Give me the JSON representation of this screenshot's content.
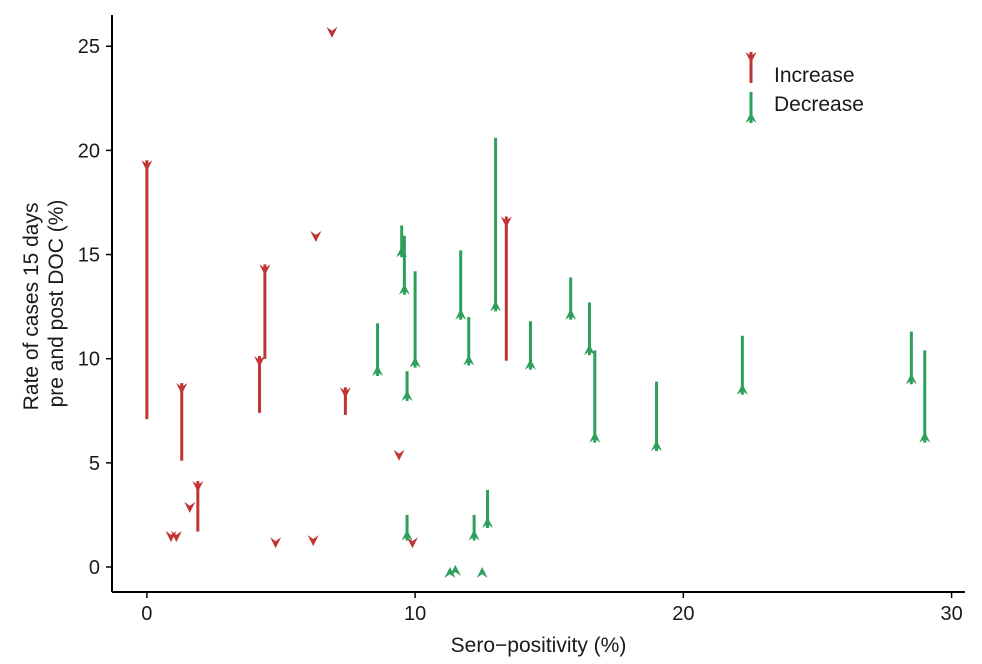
{
  "chart_data": {
    "type": "arrow",
    "xlabel": "Sero−positivity (%)",
    "ylabel_lines": [
      "Rate of cases 15 days",
      "pre and post DOC (%)"
    ],
    "xlim": [
      -1.3,
      30.5
    ],
    "ylim": [
      -1.2,
      26.5
    ],
    "xticks": [
      0,
      10,
      20,
      30
    ],
    "yticks": [
      0,
      5,
      10,
      15,
      20,
      25
    ],
    "grid": false,
    "legend_position": "top-right",
    "colors": {
      "Increase": "#c03434",
      "Decrease": "#2e9e5b"
    },
    "series": [
      {
        "name": "Increase",
        "arrows": [
          {
            "x": 0.0,
            "from": 7.1,
            "to": 19.0
          },
          {
            "x": 0.9,
            "from": 0.8,
            "to": 1.2
          },
          {
            "x": 1.1,
            "from": 0.8,
            "to": 1.2
          },
          {
            "x": 1.3,
            "from": 5.1,
            "to": 8.3
          },
          {
            "x": 1.6,
            "from": 2.2,
            "to": 2.6
          },
          {
            "x": 1.9,
            "from": 1.7,
            "to": 3.6
          },
          {
            "x": 4.2,
            "from": 7.4,
            "to": 9.6
          },
          {
            "x": 4.4,
            "from": 10.0,
            "to": 14.0
          },
          {
            "x": 4.8,
            "from": 0.4,
            "to": 0.9
          },
          {
            "x": 6.2,
            "from": 0.6,
            "to": 1.0
          },
          {
            "x": 6.3,
            "from": 15.2,
            "to": 15.6
          },
          {
            "x": 6.9,
            "from": 25.0,
            "to": 25.4
          },
          {
            "x": 7.4,
            "from": 7.3,
            "to": 8.1
          },
          {
            "x": 9.4,
            "from": 4.7,
            "to": 5.1
          },
          {
            "x": 9.9,
            "from": 0.4,
            "to": 0.9
          },
          {
            "x": 13.4,
            "from": 9.9,
            "to": 16.3
          }
        ]
      },
      {
        "name": "Decrease",
        "arrows": [
          {
            "x": 8.6,
            "from": 11.7,
            "to": 9.7
          },
          {
            "x": 9.5,
            "from": 16.4,
            "to": 15.4
          },
          {
            "x": 9.6,
            "from": 15.9,
            "to": 13.6
          },
          {
            "x": 9.7,
            "from": 9.4,
            "to": 8.5
          },
          {
            "x": 9.7,
            "from": 2.5,
            "to": 1.8
          },
          {
            "x": 10.0,
            "from": 14.2,
            "to": 10.1
          },
          {
            "x": 11.3,
            "from": 0.4,
            "to": 0.0
          },
          {
            "x": 11.5,
            "from": 0.5,
            "to": 0.1
          },
          {
            "x": 11.7,
            "from": 15.2,
            "to": 12.4
          },
          {
            "x": 12.0,
            "from": 12.0,
            "to": 10.2
          },
          {
            "x": 12.2,
            "from": 2.5,
            "to": 1.8
          },
          {
            "x": 12.5,
            "from": 0.4,
            "to": 0.0
          },
          {
            "x": 12.7,
            "from": 3.7,
            "to": 2.4
          },
          {
            "x": 13.0,
            "from": 20.6,
            "to": 12.8
          },
          {
            "x": 14.3,
            "from": 11.8,
            "to": 10.0
          },
          {
            "x": 15.8,
            "from": 13.9,
            "to": 12.4
          },
          {
            "x": 16.5,
            "from": 12.7,
            "to": 10.7
          },
          {
            "x": 16.7,
            "from": 10.4,
            "to": 6.5
          },
          {
            "x": 19.0,
            "from": 8.9,
            "to": 6.1
          },
          {
            "x": 22.2,
            "from": 11.1,
            "to": 8.8
          },
          {
            "x": 28.5,
            "from": 11.3,
            "to": 9.3
          },
          {
            "x": 29.0,
            "from": 10.4,
            "to": 6.5
          }
        ]
      }
    ]
  }
}
